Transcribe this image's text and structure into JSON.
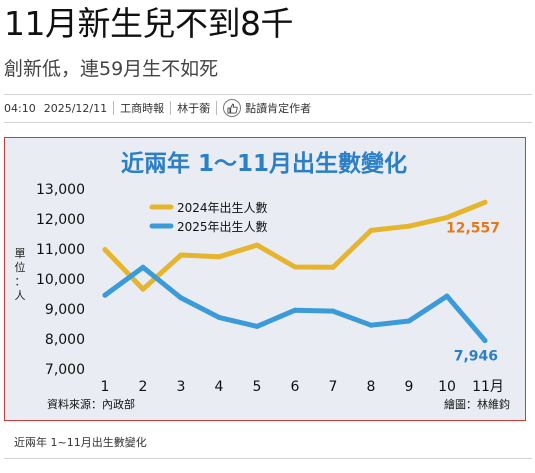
{
  "article": {
    "headline": "11月新生兒不到8千",
    "subheadline": "創新低，連59月生不如死",
    "time": "04:10",
    "date": "2025/12/11",
    "source": "工商時報",
    "author": "林于蘅",
    "follow_label": "點讀肯定作者",
    "caption": "近兩年 1~11月出生數變化"
  },
  "icons": {
    "follow": "thumbs-up-icon"
  },
  "colors": {
    "frame_border": "#d23a3a",
    "series_2024": "#e5b52e",
    "series_2025": "#3b9bd8",
    "title": "#2a7fc6",
    "end_label_2024": "#e07a1a",
    "end_label_2025": "#2a7fc6"
  },
  "chart_data": {
    "type": "line",
    "title": "近兩年  1～11月出生數變化",
    "x": [
      1,
      2,
      3,
      4,
      5,
      6,
      7,
      8,
      9,
      10,
      11
    ],
    "x_tick_labels": [
      "1",
      "2",
      "3",
      "4",
      "5",
      "6",
      "7",
      "8",
      "9",
      "10",
      "11月"
    ],
    "ylabel": "單位：人",
    "ylim": [
      7000,
      13000
    ],
    "y_ticks": [
      "7,000",
      "8,000",
      "9,000",
      "10,000",
      "11,000",
      "12,000",
      "13,000"
    ],
    "grid": false,
    "legend_position": "top-left",
    "series": [
      {
        "name": "2024年出生人數",
        "color": "#e5b52e",
        "values": [
          10980,
          9660,
          10800,
          10740,
          11130,
          10400,
          10390,
          11620,
          11760,
          12050,
          12557
        ],
        "end_label": "12,557"
      },
      {
        "name": "2025年出生人數",
        "color": "#3b9bd8",
        "values": [
          9460,
          10390,
          9370,
          8720,
          8420,
          8960,
          8930,
          8460,
          8600,
          9430,
          7946
        ],
        "end_label": "7,946"
      }
    ],
    "source_note": "資料來源：內政部",
    "credit_note": "繪圖：林維鈞"
  }
}
